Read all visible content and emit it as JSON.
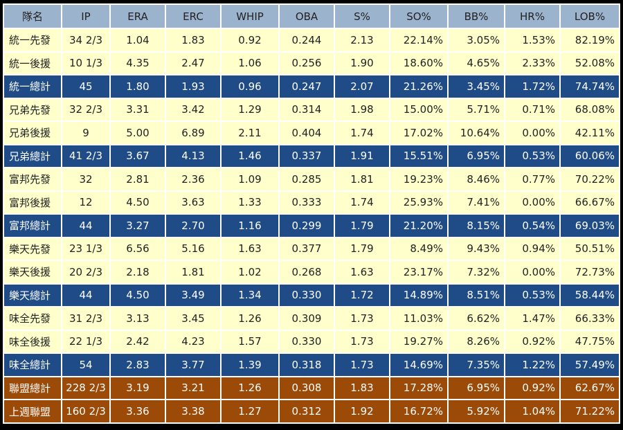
{
  "headers": [
    "隊名",
    "IP",
    "ERA",
    "ERC",
    "WHIP",
    "OBA",
    "S%",
    "SO%",
    "BB%",
    "HR%",
    "LOB%"
  ],
  "rows": [
    {
      "type": "starter",
      "cells": [
        "統一先發",
        "34 2/3",
        "1.04",
        "1.83",
        "0.92",
        "0.244",
        "2.13",
        "22.14%",
        "3.05%",
        "1.53%",
        "82.19%"
      ]
    },
    {
      "type": "reliever",
      "cells": [
        "統一後援",
        "10 1/3",
        "4.35",
        "2.47",
        "1.06",
        "0.256",
        "1.90",
        "18.60%",
        "4.65%",
        "2.33%",
        "52.08%"
      ]
    },
    {
      "type": "total",
      "cells": [
        "統一總計",
        "45",
        "1.80",
        "1.93",
        "0.96",
        "0.247",
        "2.07",
        "21.26%",
        "3.45%",
        "1.72%",
        "74.74%"
      ]
    },
    {
      "type": "starter",
      "cells": [
        "兄弟先發",
        "32 2/3",
        "3.31",
        "3.42",
        "1.29",
        "0.314",
        "1.98",
        "15.00%",
        "5.71%",
        "0.71%",
        "68.08%"
      ]
    },
    {
      "type": "reliever",
      "cells": [
        "兄弟後援",
        "9",
        "5.00",
        "6.89",
        "2.11",
        "0.404",
        "1.74",
        "17.02%",
        "10.64%",
        "0.00%",
        "42.11%"
      ]
    },
    {
      "type": "total",
      "cells": [
        "兄弟總計",
        "41 2/3",
        "3.67",
        "4.13",
        "1.46",
        "0.337",
        "1.91",
        "15.51%",
        "6.95%",
        "0.53%",
        "60.06%"
      ]
    },
    {
      "type": "starter",
      "cells": [
        "富邦先發",
        "32",
        "2.81",
        "2.36",
        "1.09",
        "0.285",
        "1.81",
        "19.23%",
        "8.46%",
        "0.77%",
        "70.22%"
      ]
    },
    {
      "type": "reliever",
      "cells": [
        "富邦後援",
        "12",
        "4.50",
        "3.63",
        "1.33",
        "0.333",
        "1.74",
        "25.93%",
        "7.41%",
        "0.00%",
        "66.67%"
      ]
    },
    {
      "type": "total",
      "cells": [
        "富邦總計",
        "44",
        "3.27",
        "2.70",
        "1.16",
        "0.299",
        "1.79",
        "21.20%",
        "8.15%",
        "0.54%",
        "69.03%"
      ]
    },
    {
      "type": "starter",
      "cells": [
        "樂天先發",
        "23 1/3",
        "6.56",
        "5.16",
        "1.63",
        "0.377",
        "1.79",
        "8.49%",
        "9.43%",
        "0.94%",
        "50.51%"
      ]
    },
    {
      "type": "reliever",
      "cells": [
        "樂天後援",
        "20 2/3",
        "2.18",
        "1.81",
        "1.02",
        "0.268",
        "1.63",
        "23.17%",
        "7.32%",
        "0.00%",
        "72.73%"
      ]
    },
    {
      "type": "total",
      "cells": [
        "樂天總計",
        "44",
        "4.50",
        "3.49",
        "1.34",
        "0.330",
        "1.72",
        "14.89%",
        "8.51%",
        "0.53%",
        "58.44%"
      ]
    },
    {
      "type": "starter",
      "cells": [
        "味全先發",
        "31 2/3",
        "3.13",
        "3.45",
        "1.26",
        "0.309",
        "1.73",
        "11.03%",
        "6.62%",
        "1.47%",
        "66.33%"
      ]
    },
    {
      "type": "reliever",
      "cells": [
        "味全後援",
        "22 1/3",
        "2.42",
        "4.23",
        "1.57",
        "0.330",
        "1.73",
        "19.27%",
        "8.26%",
        "0.92%",
        "47.75%"
      ]
    },
    {
      "type": "total",
      "cells": [
        "味全總計",
        "54",
        "2.83",
        "3.77",
        "1.39",
        "0.318",
        "1.73",
        "14.69%",
        "7.35%",
        "1.22%",
        "57.49%"
      ]
    },
    {
      "type": "league",
      "cells": [
        "聯盟總計",
        "228 2/3",
        "3.19",
        "3.21",
        "1.26",
        "0.308",
        "1.83",
        "17.28%",
        "6.95%",
        "0.92%",
        "62.67%"
      ]
    },
    {
      "type": "league",
      "cells": [
        "上週聯盟",
        "160 2/3",
        "3.36",
        "3.38",
        "1.27",
        "0.312",
        "1.92",
        "16.72%",
        "5.92%",
        "1.04%",
        "71.22%"
      ]
    }
  ]
}
